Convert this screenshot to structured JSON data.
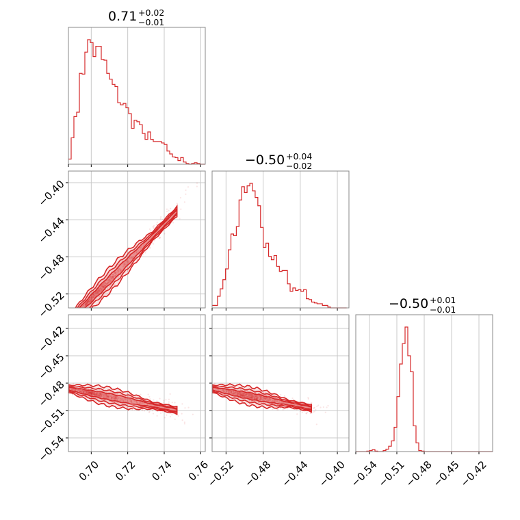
{
  "chart_data": {
    "type": "corner",
    "color": "#d62728",
    "grid": true,
    "parameters": [
      {
        "median": "0.71",
        "plus": "+0.02",
        "minus": "−0.01",
        "range": [
          0.6875,
          0.7625
        ],
        "ticks": [
          0.7,
          0.72,
          0.74,
          0.76
        ],
        "tick_labels": [
          "0.70",
          "0.72",
          "0.74",
          "0.76"
        ]
      },
      {
        "median": "−0.50",
        "plus": "+0.04",
        "minus": "−0.02",
        "range": [
          -0.535,
          -0.3875
        ],
        "ticks": [
          -0.52,
          -0.48,
          -0.44,
          -0.4
        ],
        "tick_labels": [
          "−0.52",
          "−0.48",
          "−0.44",
          "−0.40"
        ]
      },
      {
        "median": "−0.50",
        "plus": "+0.01",
        "minus": "−0.01",
        "range": [
          -0.555,
          -0.405
        ],
        "ticks": [
          -0.54,
          -0.51,
          -0.48,
          -0.45,
          -0.42
        ],
        "tick_labels": [
          "−0.54",
          "−0.51",
          "−0.48",
          "−0.45",
          "−0.42"
        ]
      }
    ],
    "histograms": [
      {
        "param": 0,
        "bin_start": 0.6875,
        "bin_width": 0.0015,
        "counts": [
          7,
          36,
          65,
          71,
          124,
          123,
          153,
          170,
          166,
          147,
          161,
          161,
          143,
          142,
          124,
          116,
          109,
          106,
          84,
          81,
          83,
          77,
          69,
          49,
          60,
          58,
          54,
          42,
          34,
          44,
          34,
          31,
          31,
          31,
          29,
          27,
          18,
          14,
          10,
          9,
          5,
          9,
          3,
          1,
          0,
          1,
          2,
          1,
          0,
          0
        ]
      },
      {
        "param": 1,
        "bin_start": -0.535,
        "bin_width": 0.0029,
        "counts": [
          3,
          3,
          14,
          23,
          34,
          47,
          70,
          89,
          87,
          98,
          130,
          146,
          139,
          147,
          150,
          141,
          133,
          123,
          97,
          73,
          78,
          62,
          58,
          63,
          50,
          44,
          45,
          45,
          29,
          20,
          24,
          21,
          22,
          20,
          22,
          11,
          10,
          7,
          6,
          5,
          5,
          3,
          3,
          1,
          0,
          0,
          0,
          0,
          0,
          0
        ]
      },
      {
        "param": 2,
        "bin_start": -0.555,
        "bin_width": 0.003,
        "counts": [
          0,
          0,
          0,
          0,
          1,
          2,
          4,
          1,
          0,
          0,
          2,
          5,
          11,
          22,
          50,
          113,
          180,
          222,
          256,
          197,
          164,
          53,
          18,
          2,
          1,
          0,
          0,
          0,
          0,
          0,
          0,
          0,
          0,
          0,
          0,
          0,
          0,
          0,
          0,
          0,
          0,
          0,
          0,
          0,
          0,
          0,
          0,
          0,
          0,
          0
        ]
      }
    ],
    "scatter_panels": [
      {
        "x_param": 0,
        "y_param": 1,
        "relation": "y = -0.505 + 2.0*(x - 0.71)",
        "scatter_width": 0.004
      },
      {
        "x_param": 0,
        "y_param": 2,
        "relation": "y = -0.495 - 0.4*(x - 0.71)",
        "scatter_width": 0.003
      },
      {
        "x_param": 1,
        "y_param": 2,
        "relation": "y = -0.493 - 0.2*(x + 0.50)",
        "scatter_width": 0.003
      }
    ]
  }
}
